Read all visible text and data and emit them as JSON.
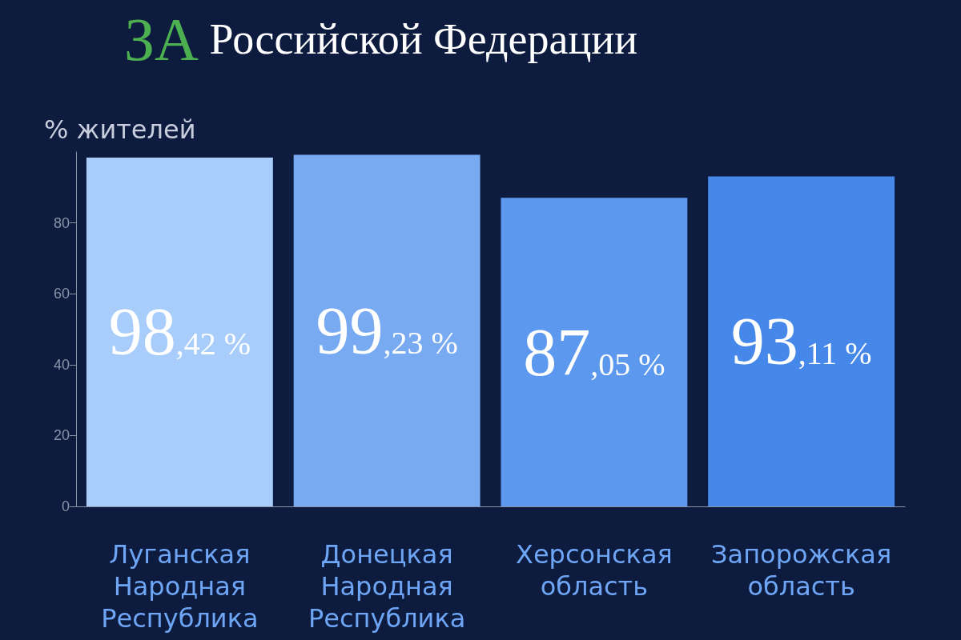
{
  "chart_data": {
    "type": "bar",
    "title": "ЗА Российской Федерации",
    "ylabel": "% жителей",
    "categories": [
      "Луганская Народная Республика",
      "Донецкая Народная Республика",
      "Херсонская область",
      "Запорожская область"
    ],
    "values": [
      98.42,
      99.23,
      87.05,
      93.11
    ],
    "colors": [
      "#a9cdfb",
      "#78aaf2",
      "#5b98ee",
      "#4688ea"
    ],
    "value_labels": [
      "98,42 %",
      "99,23 %",
      "87,05 %",
      "93,11 %"
    ],
    "ylim": [
      0,
      100
    ],
    "yticks": [
      0,
      20,
      40,
      60,
      80
    ],
    "grid": false
  }
}
